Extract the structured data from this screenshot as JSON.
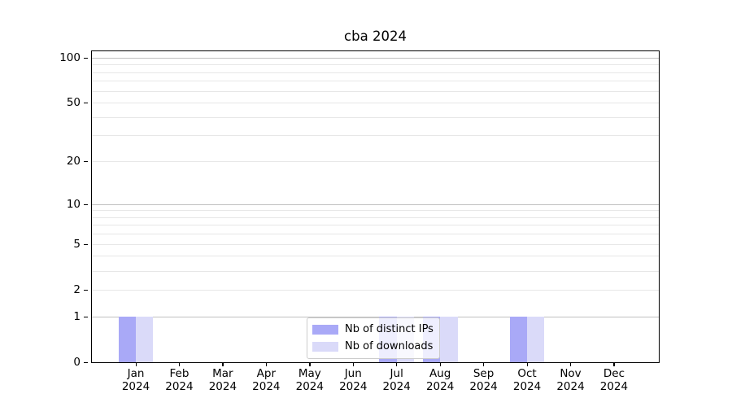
{
  "chart_data": {
    "type": "bar",
    "title": "cba 2024",
    "categories": [
      "Jan\n2024",
      "Feb\n2024",
      "Mar\n2024",
      "Apr\n2024",
      "May\n2024",
      "Jun\n2024",
      "Jul\n2024",
      "Aug\n2024",
      "Sep\n2024",
      "Oct\n2024",
      "Nov\n2024",
      "Dec\n2024"
    ],
    "series": [
      {
        "name": "Nb of distinct IPs",
        "color": "#a9a9f7",
        "values": [
          1,
          0,
          0,
          0,
          0,
          0,
          1,
          1,
          0,
          1,
          0,
          0
        ]
      },
      {
        "name": "Nb of downloads",
        "color": "#dadaf9",
        "values": [
          1,
          0,
          0,
          0,
          0,
          0,
          1,
          1,
          0,
          1,
          0,
          0
        ]
      }
    ],
    "xlabel": "",
    "ylabel": "",
    "yscale": "log1p",
    "ylim": [
      0,
      110
    ],
    "ytick_labels": [
      0,
      1,
      2,
      5,
      10,
      20,
      50,
      100
    ],
    "gridlines_major": [
      1,
      10,
      100
    ],
    "gridlines_minor": [
      2,
      3,
      4,
      5,
      6,
      7,
      8,
      9,
      20,
      30,
      40,
      50,
      60,
      70,
      80,
      90
    ],
    "grid": "horizontal",
    "legend_position": "lower center",
    "colors": {
      "grid_major": "#c0c0c0",
      "grid_minor": "#e7e7e7",
      "axis": "#000000",
      "background": "#ffffff"
    }
  }
}
